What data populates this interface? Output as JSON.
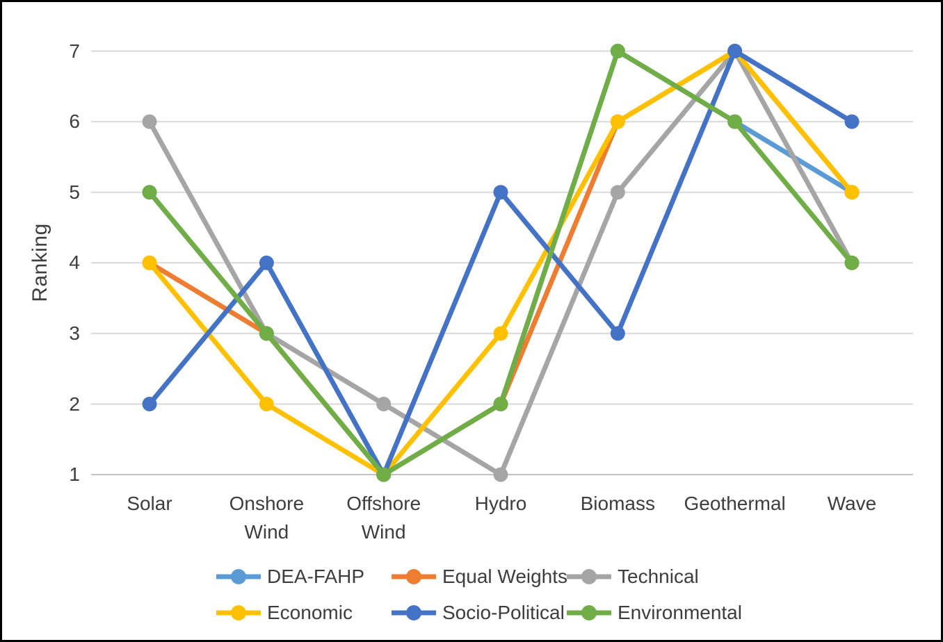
{
  "figure": {
    "background": "#FFFFFF",
    "border_color": "#000000"
  },
  "chart_data": {
    "type": "line",
    "title": "",
    "xlabel": "",
    "ylabel": "Ranking",
    "ylim": [
      1,
      7
    ],
    "yticks": [
      1,
      2,
      3,
      4,
      5,
      6,
      7
    ],
    "grid": "horizontal",
    "gridline_color": "#D9D9D9",
    "axis_color": "#BFBFBF",
    "text_color": "#3D3D3D",
    "marker": "circle",
    "legend_position": "bottom",
    "legend_columns": 3,
    "categories": [
      "Solar",
      "Onshore Wind",
      "Offshore Wind",
      "Hydro",
      "Biomass",
      "Geothermal",
      "Wave"
    ],
    "series": [
      {
        "name": "DEA-FAHP",
        "color": "#5B9BD5",
        "values": [
          5,
          3,
          1,
          2,
          7,
          6,
          5
        ]
      },
      {
        "name": "Equal Weights",
        "color": "#ED7D31",
        "values": [
          4,
          3,
          1,
          2,
          6,
          7,
          5
        ]
      },
      {
        "name": "Technical",
        "color": "#A5A5A5",
        "values": [
          6,
          3,
          2,
          1,
          5,
          7,
          4
        ]
      },
      {
        "name": "Economic",
        "color": "#FFC000",
        "values": [
          4,
          2,
          1,
          3,
          6,
          7,
          5
        ]
      },
      {
        "name": "Socio-Political",
        "color": "#4472C4",
        "values": [
          2,
          4,
          1,
          5,
          3,
          7,
          6
        ]
      },
      {
        "name": "Environmental",
        "color": "#70AD47",
        "values": [
          5,
          3,
          1,
          2,
          7,
          6,
          4
        ]
      }
    ]
  }
}
